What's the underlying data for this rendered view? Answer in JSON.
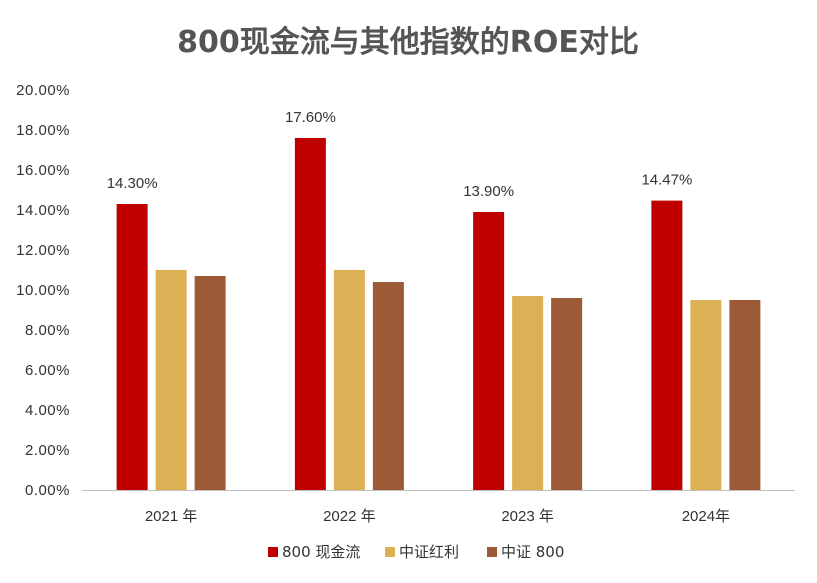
{
  "chart_data": {
    "type": "bar",
    "title": "800现金流与其他指数的ROE对比",
    "xlabel": "",
    "ylabel": "",
    "categories": [
      "2021 年",
      "2022 年",
      "2023 年",
      "2024年"
    ],
    "ylim": [
      0,
      20
    ],
    "yticks": [
      "0.00%",
      "2.00%",
      "4.00%",
      "6.00%",
      "8.00%",
      "10.00%",
      "12.00%",
      "14.00%",
      "16.00%",
      "18.00%",
      "20.00%"
    ],
    "grid": false,
    "legend": "bottom",
    "series": [
      {
        "name": "800 现金流",
        "color": "#C00000",
        "values": [
          14.3,
          17.6,
          13.9,
          14.47
        ],
        "data_labels": [
          "14.30%",
          "17.60%",
          "13.90%",
          "14.47%"
        ]
      },
      {
        "name": "中证红利",
        "color": "#DCB155",
        "values": [
          11.0,
          11.0,
          9.7,
          9.5
        ]
      },
      {
        "name": "中证 800",
        "color": "#9C5B36",
        "values": [
          10.7,
          10.4,
          9.6,
          9.5
        ]
      }
    ]
  }
}
